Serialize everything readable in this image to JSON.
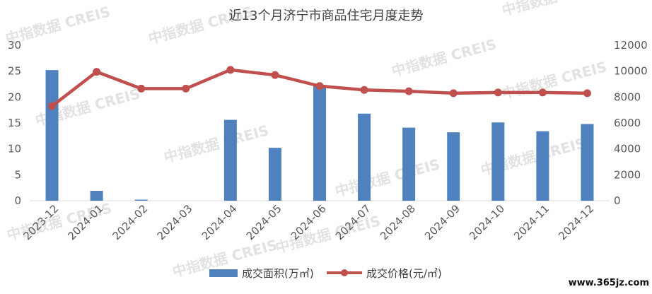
{
  "chart_data": {
    "type": "bar",
    "title": "近13个月济宁市商品住宅月度走势",
    "categories": [
      "2023-12",
      "2024-01",
      "2024-02",
      "2024-03",
      "2024-04",
      "2024-05",
      "2024-06",
      "2024-07",
      "2024-08",
      "2024-09",
      "2024-10",
      "2024-11",
      "2024-12"
    ],
    "series": [
      {
        "name": "成交面积(万㎡)",
        "type": "bar",
        "axis": "left",
        "color": "#4e81bd",
        "values": [
          25.2,
          1.9,
          0.2,
          0.0,
          15.6,
          10.2,
          22.2,
          16.8,
          14.1,
          13.2,
          15.1,
          13.4,
          14.8
        ]
      },
      {
        "name": "成交价格(元/㎡)",
        "type": "line",
        "axis": "right",
        "color": "#c0504d",
        "values": [
          7300,
          9950,
          8650,
          8650,
          10100,
          9700,
          8850,
          8550,
          8450,
          8300,
          8350,
          8350,
          8300
        ]
      }
    ],
    "y_left": {
      "min": 0,
      "max": 30,
      "ticks": [
        0,
        5,
        10,
        15,
        20,
        25,
        30
      ]
    },
    "y_right": {
      "min": 0,
      "max": 12000,
      "ticks": [
        0,
        2000,
        4000,
        6000,
        8000,
        10000,
        12000
      ]
    },
    "legend_position": "bottom",
    "grid": false
  },
  "watermark_text": "中指数据 CREIS",
  "corner_text": "www.365jz.com"
}
